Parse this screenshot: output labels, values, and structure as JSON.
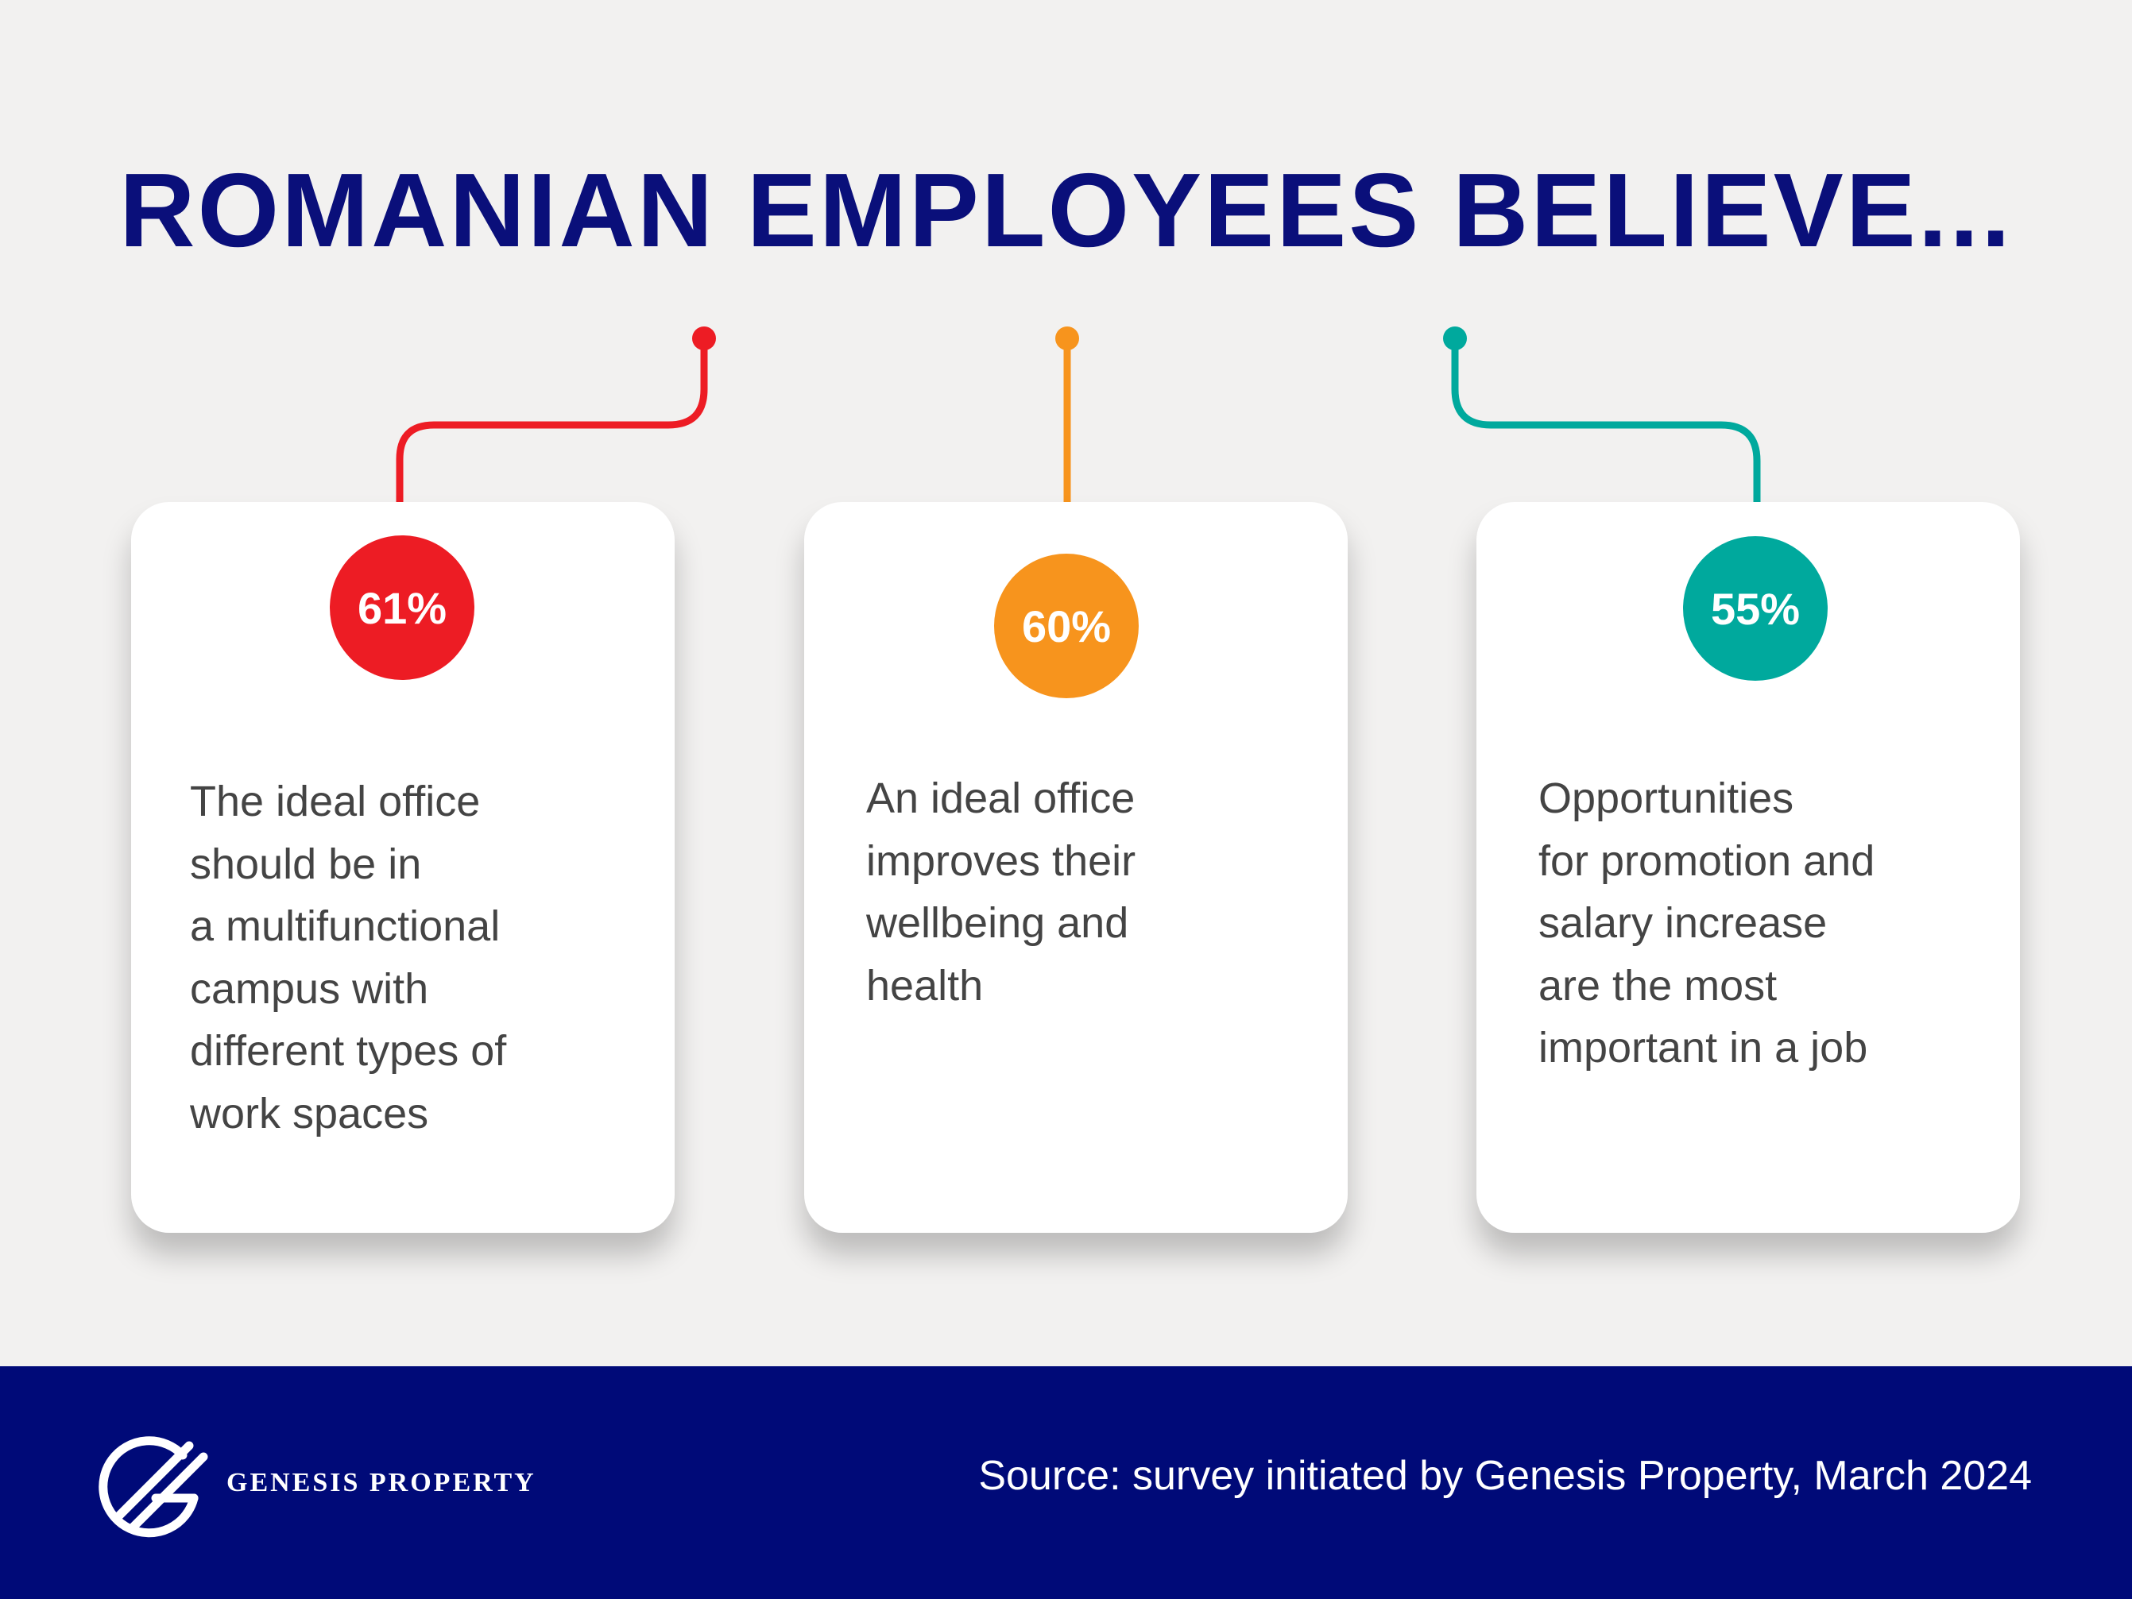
{
  "title": "ROMANIAN EMPLOYEES BELIEVE...",
  "colors": {
    "title": "#0a0f7a",
    "red": "#ed1c24",
    "orange": "#f7941d",
    "teal": "#00a99d",
    "footer": "#000a78",
    "text": "#444444"
  },
  "stats": [
    {
      "value": "61%",
      "text": "The ideal office\nshould be in\na multifunctional\ncampus with\ndifferent types of\nwork spaces"
    },
    {
      "value": "60%",
      "text": "An ideal office\nimproves their\nwellbeing and\nhealth"
    },
    {
      "value": "55%",
      "text": "Opportunities\nfor promotion and\nsalary increase\nare the most\nimportant in a job"
    }
  ],
  "footer": {
    "brand": "GENESIS PROPERTY",
    "logo_icon": "genesis-g-logo-icon",
    "source": "Source: survey initiated by Genesis Property, March 2024"
  }
}
